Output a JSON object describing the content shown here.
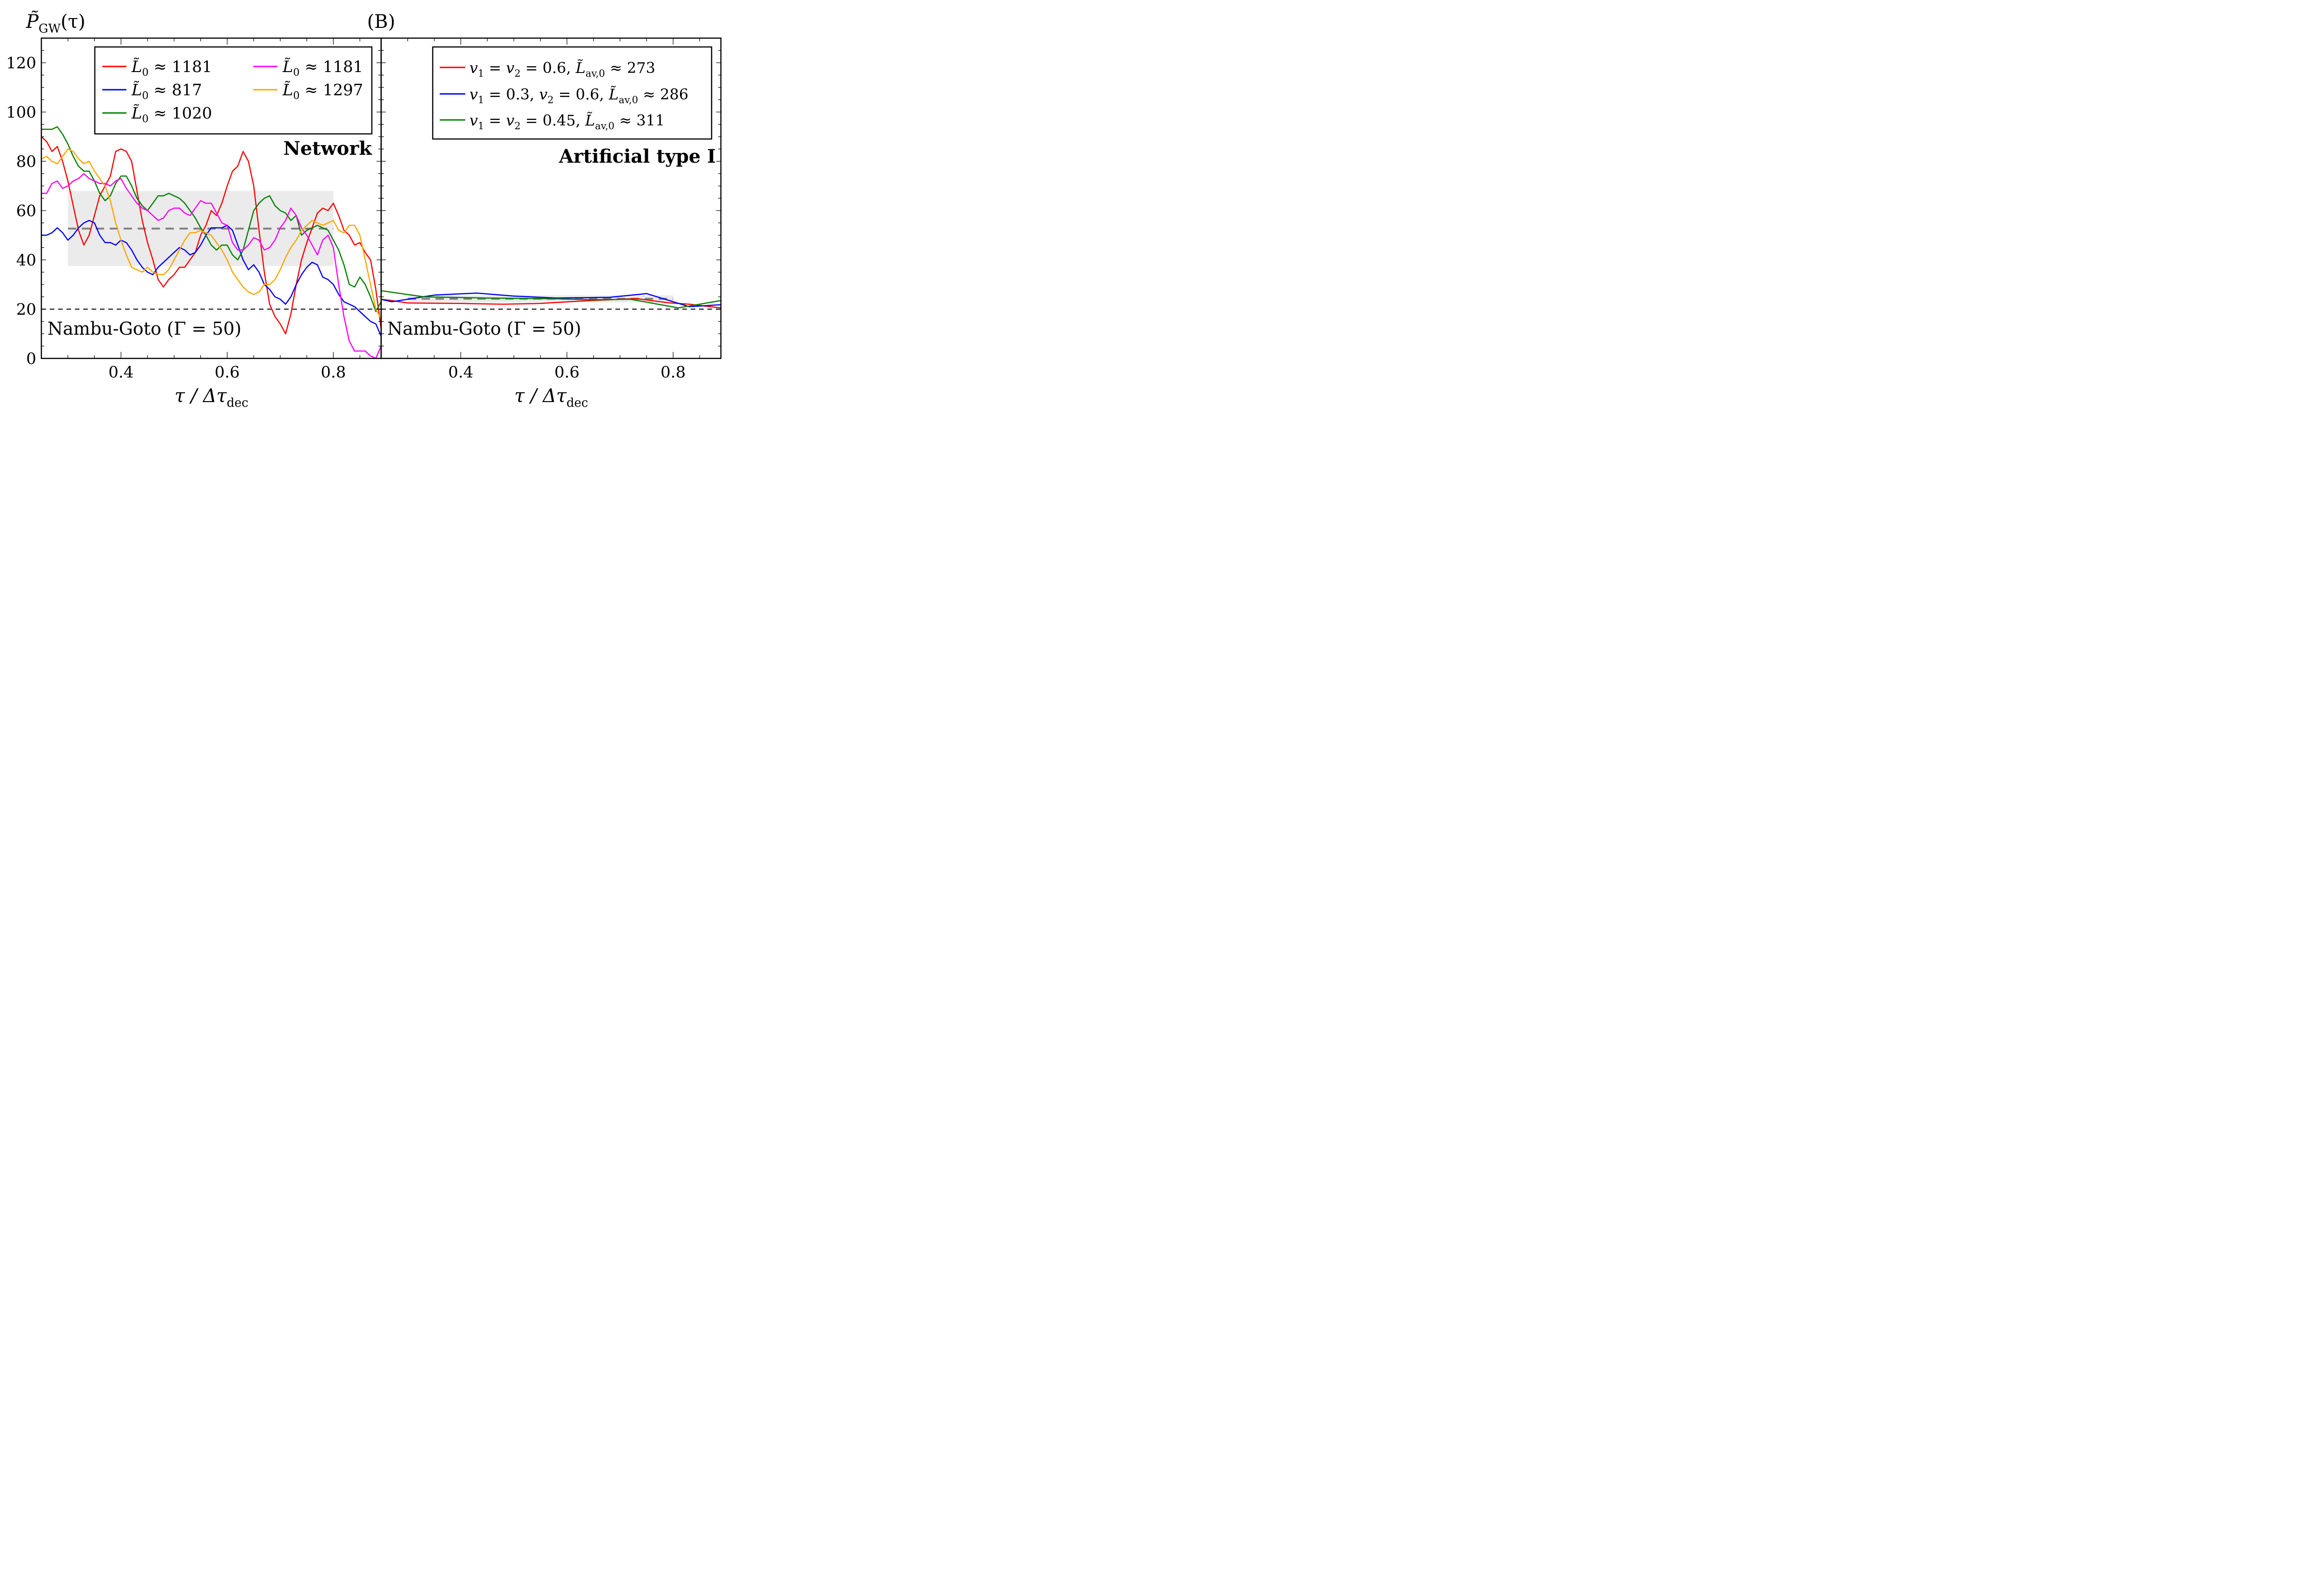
{
  "figure": {
    "panel_label": "(B)",
    "y_axis_title": "P̃",
    "y_axis_title_sub": "GW",
    "y_axis_title_arg": "(τ)"
  },
  "chart_data": [
    {
      "type": "line",
      "panel": "left",
      "annotation": "Network",
      "reference_label": "Nambu-Goto (Γ = 50)",
      "reference_value": 20,
      "xlabel": "τ / Δτ",
      "xlabel_sub": "dec",
      "ylabel": "P̃GW(τ)",
      "xlim": [
        0.25,
        0.89
      ],
      "ylim": [
        0,
        130
      ],
      "xticks": [
        0.4,
        0.6,
        0.8
      ],
      "xtick_labels": [
        "0.4",
        "0.6",
        "0.8"
      ],
      "yticks": [
        0,
        20,
        40,
        60,
        80,
        100,
        120
      ],
      "ytick_labels": [
        "0",
        "20",
        "40",
        "60",
        "80",
        "100",
        "120"
      ],
      "grid": false,
      "legend_position": "top-right",
      "legend_columns": 2,
      "mean_band": {
        "x_range": [
          0.3,
          0.8
        ],
        "mean": 52.7,
        "lower": 37.5,
        "upper": 68,
        "band_color": "#ebebeb",
        "mean_color": "#808080"
      },
      "series": [
        {
          "name": "L̃0 ≈ 1181",
          "legend_label": "L̃",
          "legend_sub": "0",
          "legend_value": " ≈ 1181",
          "color": "#ff0000",
          "x": [
            0.25,
            0.26,
            0.27,
            0.28,
            0.29,
            0.3,
            0.31,
            0.32,
            0.33,
            0.34,
            0.35,
            0.36,
            0.37,
            0.38,
            0.39,
            0.4,
            0.41,
            0.42,
            0.43,
            0.44,
            0.45,
            0.46,
            0.47,
            0.48,
            0.49,
            0.5,
            0.51,
            0.52,
            0.53,
            0.54,
            0.55,
            0.56,
            0.57,
            0.58,
            0.59,
            0.6,
            0.61,
            0.62,
            0.63,
            0.64,
            0.65,
            0.66,
            0.67,
            0.68,
            0.69,
            0.7,
            0.71,
            0.72,
            0.73,
            0.74,
            0.75,
            0.76,
            0.77,
            0.78,
            0.79,
            0.8,
            0.81,
            0.82,
            0.83,
            0.84,
            0.85,
            0.86,
            0.87,
            0.88,
            0.89
          ],
          "y": [
            90,
            88,
            84,
            86,
            80,
            72,
            62,
            52,
            46,
            50,
            58,
            66,
            70,
            74,
            84,
            85,
            84,
            80,
            68,
            56,
            47,
            40,
            32,
            29,
            32,
            34,
            37,
            37,
            40,
            43,
            50,
            54,
            60,
            58,
            63,
            70,
            76,
            78,
            84,
            80,
            70,
            52,
            35,
            22,
            17,
            14,
            10,
            18,
            30,
            40,
            47,
            53,
            59,
            61,
            60,
            63,
            58,
            52,
            50,
            46,
            47,
            43,
            40,
            28,
            12
          ]
        },
        {
          "name": "L̃0 ≈ 817",
          "legend_label": "L̃",
          "legend_sub": "0",
          "legend_value": " ≈ 817",
          "color": "#0000ff",
          "x": [
            0.25,
            0.26,
            0.27,
            0.28,
            0.29,
            0.3,
            0.31,
            0.32,
            0.33,
            0.34,
            0.35,
            0.36,
            0.37,
            0.38,
            0.39,
            0.4,
            0.41,
            0.42,
            0.43,
            0.44,
            0.45,
            0.46,
            0.47,
            0.48,
            0.49,
            0.5,
            0.51,
            0.52,
            0.53,
            0.54,
            0.55,
            0.56,
            0.57,
            0.58,
            0.59,
            0.6,
            0.61,
            0.62,
            0.63,
            0.64,
            0.65,
            0.66,
            0.67,
            0.68,
            0.69,
            0.7,
            0.71,
            0.72,
            0.73,
            0.74,
            0.75,
            0.76,
            0.77,
            0.78,
            0.79,
            0.8,
            0.81,
            0.82,
            0.83,
            0.84,
            0.85,
            0.86,
            0.87,
            0.88,
            0.89
          ],
          "y": [
            50,
            50,
            51,
            53,
            51,
            48,
            50,
            53,
            55,
            56,
            55,
            50,
            47,
            47,
            46,
            48,
            47,
            44,
            40,
            37,
            35,
            34,
            37,
            39,
            41,
            43,
            45,
            44,
            42,
            43,
            46,
            50,
            53,
            53,
            53,
            54,
            52,
            46,
            40,
            36,
            38,
            35,
            30,
            28,
            25,
            24,
            22,
            25,
            30,
            34,
            37,
            39,
            38,
            33,
            32,
            30,
            26,
            23,
            22,
            21,
            19,
            17,
            15,
            14,
            9
          ]
        },
        {
          "name": "L̃0 ≈ 1020",
          "legend_label": "L̃",
          "legend_sub": "0",
          "legend_value": " ≈ 1020",
          "color": "#008000",
          "x": [
            0.25,
            0.26,
            0.27,
            0.28,
            0.29,
            0.3,
            0.31,
            0.32,
            0.33,
            0.34,
            0.35,
            0.36,
            0.37,
            0.38,
            0.39,
            0.4,
            0.41,
            0.42,
            0.43,
            0.44,
            0.45,
            0.46,
            0.47,
            0.48,
            0.49,
            0.5,
            0.51,
            0.52,
            0.53,
            0.54,
            0.55,
            0.56,
            0.57,
            0.58,
            0.59,
            0.6,
            0.61,
            0.62,
            0.63,
            0.64,
            0.65,
            0.66,
            0.67,
            0.68,
            0.69,
            0.7,
            0.71,
            0.72,
            0.73,
            0.74,
            0.75,
            0.76,
            0.77,
            0.78,
            0.79,
            0.8,
            0.81,
            0.82,
            0.83,
            0.84,
            0.85,
            0.86,
            0.87,
            0.88,
            0.89
          ],
          "y": [
            93,
            93,
            93,
            94,
            91,
            87,
            82,
            78,
            76,
            76,
            72,
            67,
            64,
            66,
            71,
            74,
            74,
            70,
            65,
            62,
            60,
            63,
            66,
            66,
            67,
            66,
            65,
            63,
            60,
            57,
            53,
            50,
            46,
            44,
            46,
            46,
            42,
            40,
            44,
            52,
            60,
            63,
            65,
            66,
            62,
            60,
            59,
            56,
            58,
            50,
            52,
            53,
            54,
            53,
            52,
            48,
            44,
            38,
            30,
            29,
            33,
            30,
            25,
            19,
            23
          ]
        },
        {
          "name": "L̃0 ≈ 1181 (magenta)",
          "legend_label": "L̃",
          "legend_sub": "0",
          "legend_value": " ≈ 1181",
          "color": "#ff00ff",
          "x": [
            0.25,
            0.26,
            0.27,
            0.28,
            0.29,
            0.3,
            0.31,
            0.32,
            0.33,
            0.34,
            0.35,
            0.36,
            0.37,
            0.38,
            0.39,
            0.4,
            0.41,
            0.42,
            0.43,
            0.44,
            0.45,
            0.46,
            0.47,
            0.48,
            0.49,
            0.5,
            0.51,
            0.52,
            0.53,
            0.54,
            0.55,
            0.56,
            0.57,
            0.58,
            0.59,
            0.6,
            0.61,
            0.62,
            0.63,
            0.64,
            0.65,
            0.66,
            0.67,
            0.68,
            0.69,
            0.7,
            0.71,
            0.72,
            0.73,
            0.74,
            0.75,
            0.76,
            0.77,
            0.78,
            0.79,
            0.8,
            0.81,
            0.82,
            0.83,
            0.84,
            0.85,
            0.86,
            0.87,
            0.88,
            0.89
          ],
          "y": [
            67,
            67,
            71,
            72,
            69,
            70,
            72,
            73,
            75,
            73,
            72,
            71,
            71,
            70,
            72,
            73,
            69,
            66,
            63,
            61,
            60,
            58,
            56,
            57,
            60,
            61,
            61,
            59,
            58,
            61,
            64,
            63,
            63,
            59,
            55,
            54,
            47,
            44,
            44,
            46,
            49,
            48,
            44,
            45,
            48,
            53,
            56,
            61,
            58,
            53,
            50,
            46,
            42,
            48,
            50,
            45,
            30,
            17,
            7,
            3,
            3,
            3,
            1,
            0,
            5
          ]
        },
        {
          "name": "L̃0 ≈ 1297",
          "legend_label": "L̃",
          "legend_sub": "0",
          "legend_value": " ≈ 1297",
          "color": "#ffa500",
          "x": [
            0.25,
            0.26,
            0.27,
            0.28,
            0.29,
            0.3,
            0.31,
            0.32,
            0.33,
            0.34,
            0.35,
            0.36,
            0.37,
            0.38,
            0.39,
            0.4,
            0.41,
            0.42,
            0.43,
            0.44,
            0.45,
            0.46,
            0.47,
            0.48,
            0.49,
            0.5,
            0.51,
            0.52,
            0.53,
            0.54,
            0.55,
            0.56,
            0.57,
            0.58,
            0.59,
            0.6,
            0.61,
            0.62,
            0.63,
            0.64,
            0.65,
            0.66,
            0.67,
            0.68,
            0.69,
            0.7,
            0.71,
            0.72,
            0.73,
            0.74,
            0.75,
            0.76,
            0.77,
            0.78,
            0.79,
            0.8,
            0.81,
            0.82,
            0.83,
            0.84,
            0.85,
            0.86,
            0.87,
            0.88,
            0.89
          ],
          "y": [
            81,
            82,
            80,
            79,
            82,
            85,
            84,
            81,
            79,
            80,
            76,
            73,
            70,
            64,
            55,
            48,
            42,
            37,
            36,
            35,
            37,
            35,
            34,
            34,
            36,
            40,
            44,
            48,
            51,
            51,
            52,
            51,
            50,
            47,
            44,
            40,
            35,
            32,
            29,
            27,
            26,
            27,
            30,
            30,
            32,
            36,
            41,
            45,
            48,
            52,
            54,
            56,
            55,
            54,
            55,
            56,
            52,
            51,
            54,
            54,
            50,
            40,
            30,
            20,
            16
          ]
        }
      ]
    },
    {
      "type": "line",
      "panel": "right",
      "annotation": "Artificial type I",
      "reference_label": "Nambu-Goto (Γ = 50)",
      "reference_value": 20,
      "xlabel": "τ / Δτ",
      "xlabel_sub": "dec",
      "xlim": [
        0.25,
        0.89
      ],
      "ylim": [
        0,
        130
      ],
      "xticks": [
        0.4,
        0.6,
        0.8
      ],
      "xtick_labels": [
        "0.4",
        "0.6",
        "0.8"
      ],
      "grid": false,
      "legend_position": "top-right",
      "legend_columns": 1,
      "mean_band": {
        "x_range": [
          0.3,
          0.8
        ],
        "mean": 24.2,
        "lower": 22.7,
        "upper": 25.6,
        "band_color": "#ebebeb",
        "mean_color": "#808080"
      },
      "series": [
        {
          "name": "v1 = v2 = 0.6, L̃av,0 ≈ 273",
          "legend_parts": [
            "v",
            "1",
            " = ",
            "v",
            "2",
            " = 0.6, ",
            "L̃",
            "av,0",
            " ≈ 273"
          ],
          "color": "#ff0000",
          "x": [
            0.25,
            0.27,
            0.3,
            0.4,
            0.48,
            0.55,
            0.62,
            0.7,
            0.73,
            0.79,
            0.83,
            0.89
          ],
          "y": [
            24,
            23.5,
            22.5,
            22.3,
            22,
            22.3,
            23.2,
            24,
            24.3,
            22.6,
            22,
            20.5
          ]
        },
        {
          "name": "v1 = 0.3, v2 = 0.6, L̃av,0 ≈ 286",
          "legend_parts": [
            "v",
            "1",
            " = 0.3, ",
            "v",
            "2",
            " = 0.6, ",
            "L̃",
            "av,0",
            " ≈ 286"
          ],
          "color": "#0000ff",
          "x": [
            0.25,
            0.27,
            0.35,
            0.43,
            0.5,
            0.58,
            0.68,
            0.75,
            0.8,
            0.83,
            0.89
          ],
          "y": [
            24,
            23,
            25.7,
            26.5,
            25.3,
            24.5,
            24.8,
            26.3,
            23,
            21,
            21.8
          ]
        },
        {
          "name": "v1 = v2 = 0.45, L̃av,0 ≈ 311",
          "legend_parts": [
            "v",
            "1",
            " = ",
            "v",
            "2",
            " = 0.45, ",
            "L̃",
            "av,0",
            " ≈ 311"
          ],
          "color": "#008000",
          "x": [
            0.25,
            0.33,
            0.45,
            0.58,
            0.65,
            0.72,
            0.81,
            0.89
          ],
          "y": [
            27.5,
            25,
            24.5,
            24.2,
            23.8,
            24,
            20.5,
            23.5
          ]
        }
      ]
    }
  ]
}
